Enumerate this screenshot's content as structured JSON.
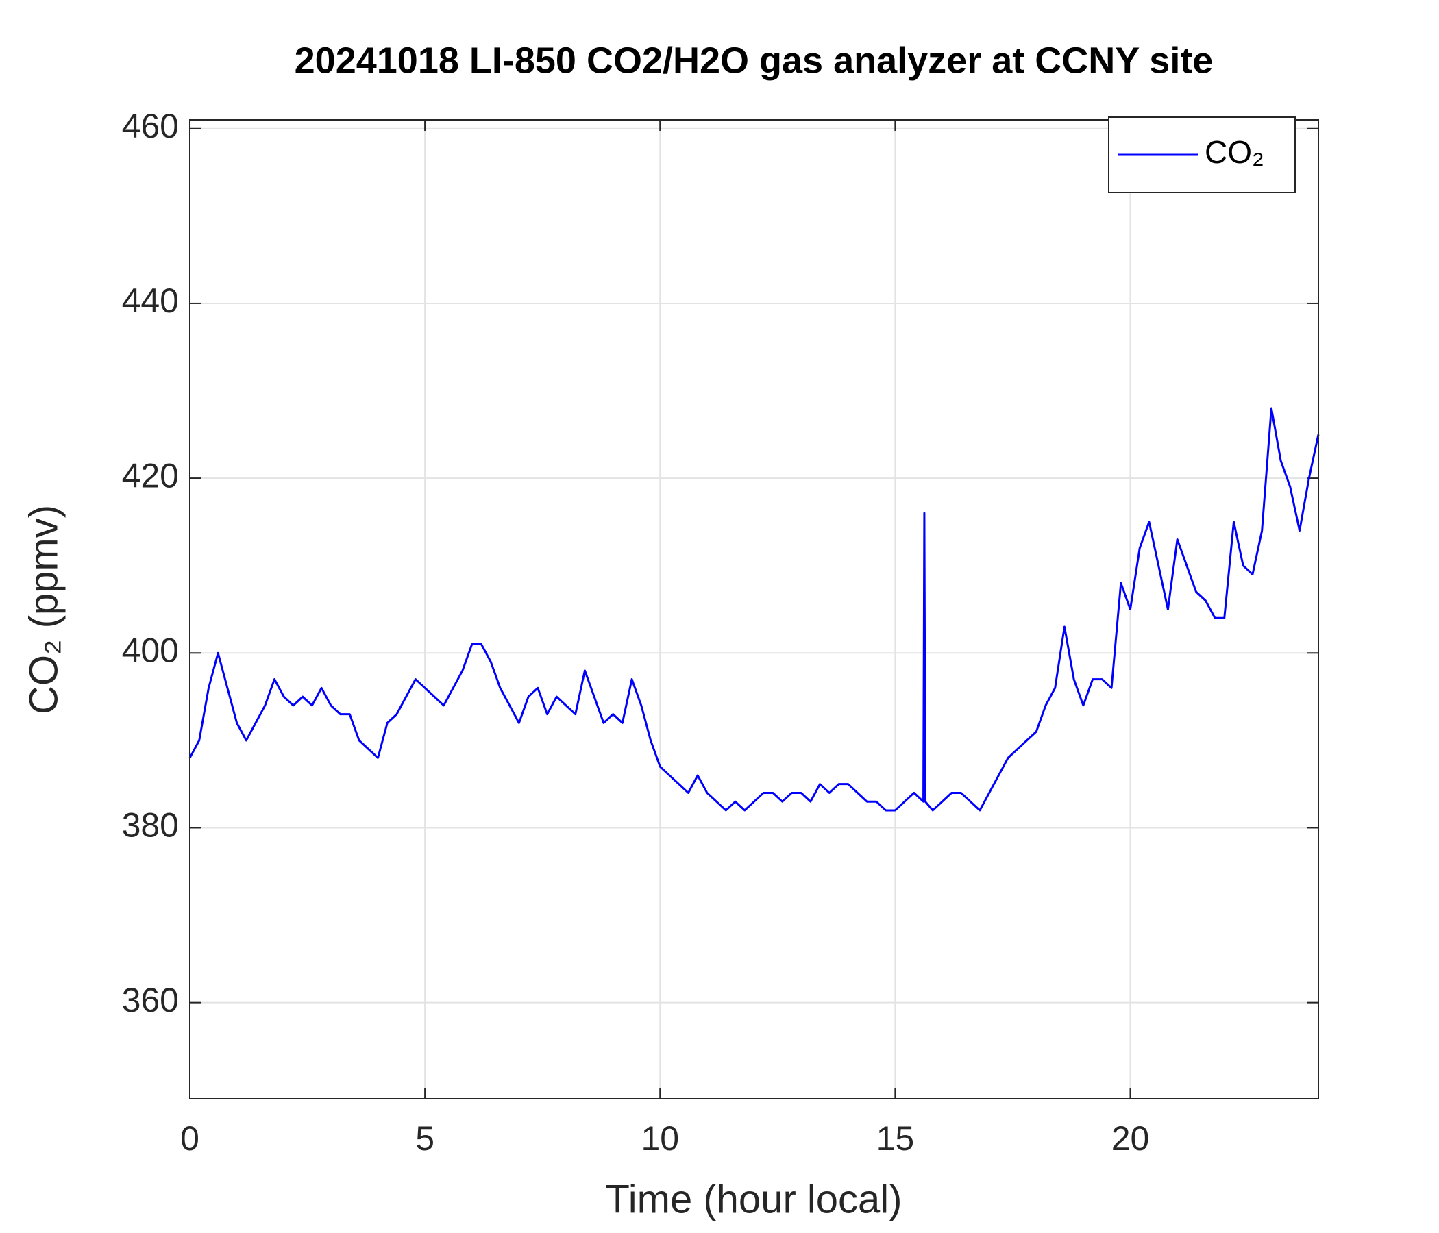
{
  "chart_data": {
    "type": "line",
    "title": "20241018 LI-850 CO2/H2O gas analyzer at CCNY site",
    "xlabel": "Time (hour local)",
    "ylabel": "CO₂ (ppmv)",
    "xlim": [
      0,
      24
    ],
    "ylim": [
      349,
      461
    ],
    "xticks": [
      0,
      5,
      10,
      15,
      20
    ],
    "yticks": [
      360,
      380,
      400,
      420,
      440,
      460
    ],
    "grid": true,
    "legend": "northeast",
    "x": [
      0.0,
      0.2,
      0.4,
      0.6,
      0.8,
      1.0,
      1.2,
      1.4,
      1.6,
      1.8,
      2.0,
      2.2,
      2.4,
      2.6,
      2.8,
      3.0,
      3.2,
      3.4,
      3.6,
      3.8,
      4.0,
      4.2,
      4.4,
      4.6,
      4.8,
      5.0,
      5.2,
      5.4,
      5.6,
      5.8,
      6.0,
      6.2,
      6.4,
      6.6,
      6.8,
      7.0,
      7.2,
      7.4,
      7.6,
      7.8,
      8.0,
      8.2,
      8.4,
      8.6,
      8.8,
      9.0,
      9.2,
      9.4,
      9.6,
      9.8,
      10.0,
      10.2,
      10.4,
      10.6,
      10.8,
      11.0,
      11.2,
      11.4,
      11.6,
      11.8,
      12.0,
      12.2,
      12.4,
      12.6,
      12.8,
      13.0,
      13.2,
      13.4,
      13.6,
      13.8,
      14.0,
      14.2,
      14.4,
      14.6,
      14.8,
      15.0,
      15.2,
      15.4,
      15.6,
      15.62,
      15.64,
      15.8,
      16.0,
      16.2,
      16.4,
      16.6,
      16.8,
      17.0,
      17.2,
      17.4,
      17.6,
      17.8,
      18.0,
      18.2,
      18.4,
      18.6,
      18.8,
      19.0,
      19.2,
      19.4,
      19.6,
      19.8,
      20.0,
      20.2,
      20.4,
      20.6,
      20.8,
      21.0,
      21.2,
      21.4,
      21.6,
      21.8,
      22.0,
      22.2,
      22.4,
      22.6,
      22.8,
      23.0,
      23.2,
      23.4,
      23.6,
      23.8,
      24.0
    ],
    "series": [
      {
        "name": "CO₂",
        "color": "#0000ff",
        "values": [
          388,
          390,
          396,
          400,
          396,
          392,
          390,
          392,
          394,
          397,
          395,
          394,
          395,
          394,
          396,
          394,
          393,
          393,
          390,
          389,
          388,
          392,
          393,
          395,
          397,
          396,
          395,
          394,
          396,
          398,
          401,
          401,
          399,
          396,
          394,
          392,
          395,
          396,
          393,
          395,
          394,
          393,
          398,
          395,
          392,
          393,
          392,
          397,
          394,
          390,
          387,
          386,
          385,
          384,
          386,
          384,
          383,
          382,
          383,
          382,
          383,
          384,
          384,
          383,
          384,
          384,
          383,
          385,
          384,
          385,
          385,
          384,
          383,
          383,
          382,
          382,
          383,
          384,
          383,
          416,
          383,
          382,
          383,
          384,
          384,
          383,
          382,
          384,
          386,
          388,
          389,
          390,
          391,
          394,
          396,
          403,
          397,
          394,
          397,
          397,
          396,
          408,
          405,
          412,
          415,
          410,
          405,
          413,
          410,
          407,
          406,
          404,
          404,
          415,
          410,
          409,
          414,
          428,
          422,
          419,
          414,
          420,
          425
        ]
      }
    ]
  }
}
